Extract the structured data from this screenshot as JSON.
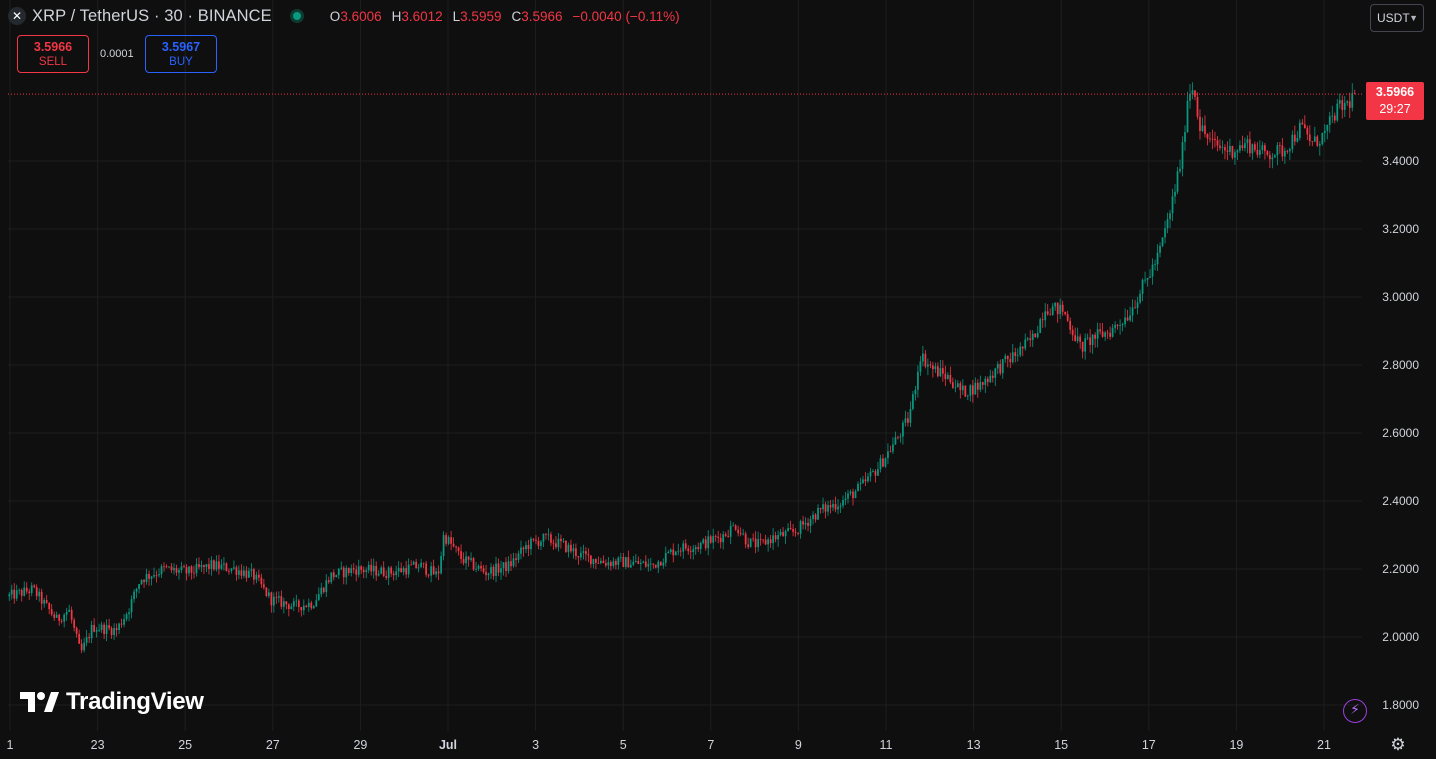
{
  "header": {
    "symbol_icon": "xrp-logo-icon",
    "symbol_title": "XRP / TetherUS · 30 · BINANCE",
    "ohlc": {
      "o_label": "O",
      "o_value": "3.6006",
      "h_label": "H",
      "h_value": "3.6012",
      "l_label": "L",
      "l_value": "3.5959",
      "c_label": "C",
      "c_value": "3.5966",
      "change": "−0.0040 (−0.11%)"
    }
  },
  "trade": {
    "sell_price": "3.5966",
    "sell_label": "SELL",
    "spread": "0.0001",
    "buy_price": "3.5967",
    "buy_label": "BUY"
  },
  "currency": {
    "label": "USDT",
    "icon": "chevron-down-icon"
  },
  "price_tag": {
    "price": "3.5966",
    "countdown": "29:27"
  },
  "branding": {
    "logo_text": "TradingView"
  },
  "icons": {
    "bolt": "bolt-icon",
    "settings": "gear-icon"
  },
  "colors": {
    "up": "#089981",
    "down": "#f23645",
    "background": "#0f0f0f",
    "grid": "#1e1e1e",
    "accent_purple": "#9c3fe0"
  },
  "chart_data": {
    "type": "candlestick",
    "title": "XRP / TetherUS · 30 · BINANCE",
    "interval": "30",
    "x_ticks": [
      "1",
      "23",
      "25",
      "27",
      "29",
      "Jul",
      "3",
      "5",
      "7",
      "9",
      "11",
      "13",
      "15",
      "17",
      "19",
      "21"
    ],
    "y_ticks": [
      "1.8000",
      "2.0000",
      "2.2000",
      "2.4000",
      "2.6000",
      "2.8000",
      "3.0000",
      "3.2000",
      "3.4000"
    ],
    "ylim": [
      1.8,
      3.65
    ],
    "last_price": 3.5966,
    "grid": true,
    "price_path": [
      [
        0,
        2.12
      ],
      [
        4,
        2.14
      ],
      [
        8,
        2.05
      ],
      [
        10,
        2.08
      ],
      [
        12,
        1.95
      ],
      [
        14,
        2.03
      ],
      [
        18,
        2.02
      ],
      [
        20,
        2.08
      ],
      [
        22,
        2.17
      ],
      [
        26,
        2.2
      ],
      [
        30,
        2.19
      ],
      [
        34,
        2.21
      ],
      [
        38,
        2.2
      ],
      [
        41,
        2.18
      ],
      [
        44,
        2.11
      ],
      [
        48,
        2.09
      ],
      [
        51,
        2.1
      ],
      [
        54,
        2.18
      ],
      [
        58,
        2.2
      ],
      [
        64,
        2.19
      ],
      [
        69,
        2.21
      ],
      [
        72,
        2.18
      ],
      [
        73,
        2.3
      ],
      [
        76,
        2.23
      ],
      [
        80,
        2.19
      ],
      [
        84,
        2.21
      ],
      [
        87,
        2.27
      ],
      [
        90,
        2.29
      ],
      [
        93,
        2.27
      ],
      [
        96,
        2.24
      ],
      [
        100,
        2.22
      ],
      [
        104,
        2.22
      ],
      [
        108,
        2.21
      ],
      [
        112,
        2.26
      ],
      [
        116,
        2.27
      ],
      [
        120,
        2.3
      ],
      [
        122,
        2.33
      ],
      [
        124,
        2.28
      ],
      [
        126,
        2.27
      ],
      [
        128,
        2.29
      ],
      [
        132,
        2.31
      ],
      [
        136,
        2.37
      ],
      [
        140,
        2.4
      ],
      [
        143,
        2.44
      ],
      [
        146,
        2.5
      ],
      [
        149,
        2.58
      ],
      [
        151,
        2.64
      ],
      [
        152,
        2.72
      ],
      [
        153,
        2.83
      ],
      [
        155,
        2.79
      ],
      [
        158,
        2.76
      ],
      [
        160,
        2.72
      ],
      [
        163,
        2.74
      ],
      [
        166,
        2.79
      ],
      [
        169,
        2.83
      ],
      [
        172,
        2.88
      ],
      [
        174,
        2.97
      ],
      [
        177,
        2.96
      ],
      [
        180,
        2.85
      ],
      [
        182,
        2.88
      ],
      [
        185,
        2.9
      ],
      [
        188,
        2.95
      ],
      [
        191,
        3.05
      ],
      [
        193,
        3.12
      ],
      [
        195,
        3.25
      ],
      [
        197,
        3.42
      ],
      [
        198,
        3.6
      ],
      [
        199,
        3.62
      ],
      [
        200,
        3.5
      ],
      [
        202,
        3.45
      ],
      [
        205,
        3.43
      ],
      [
        208,
        3.45
      ],
      [
        211,
        3.42
      ],
      [
        214,
        3.43
      ],
      [
        217,
        3.5
      ],
      [
        219,
        3.45
      ],
      [
        221,
        3.48
      ],
      [
        223,
        3.55
      ],
      [
        225,
        3.57
      ],
      [
        226,
        3.6
      ]
    ],
    "price_path_x_span": [
      0,
      226
    ]
  }
}
